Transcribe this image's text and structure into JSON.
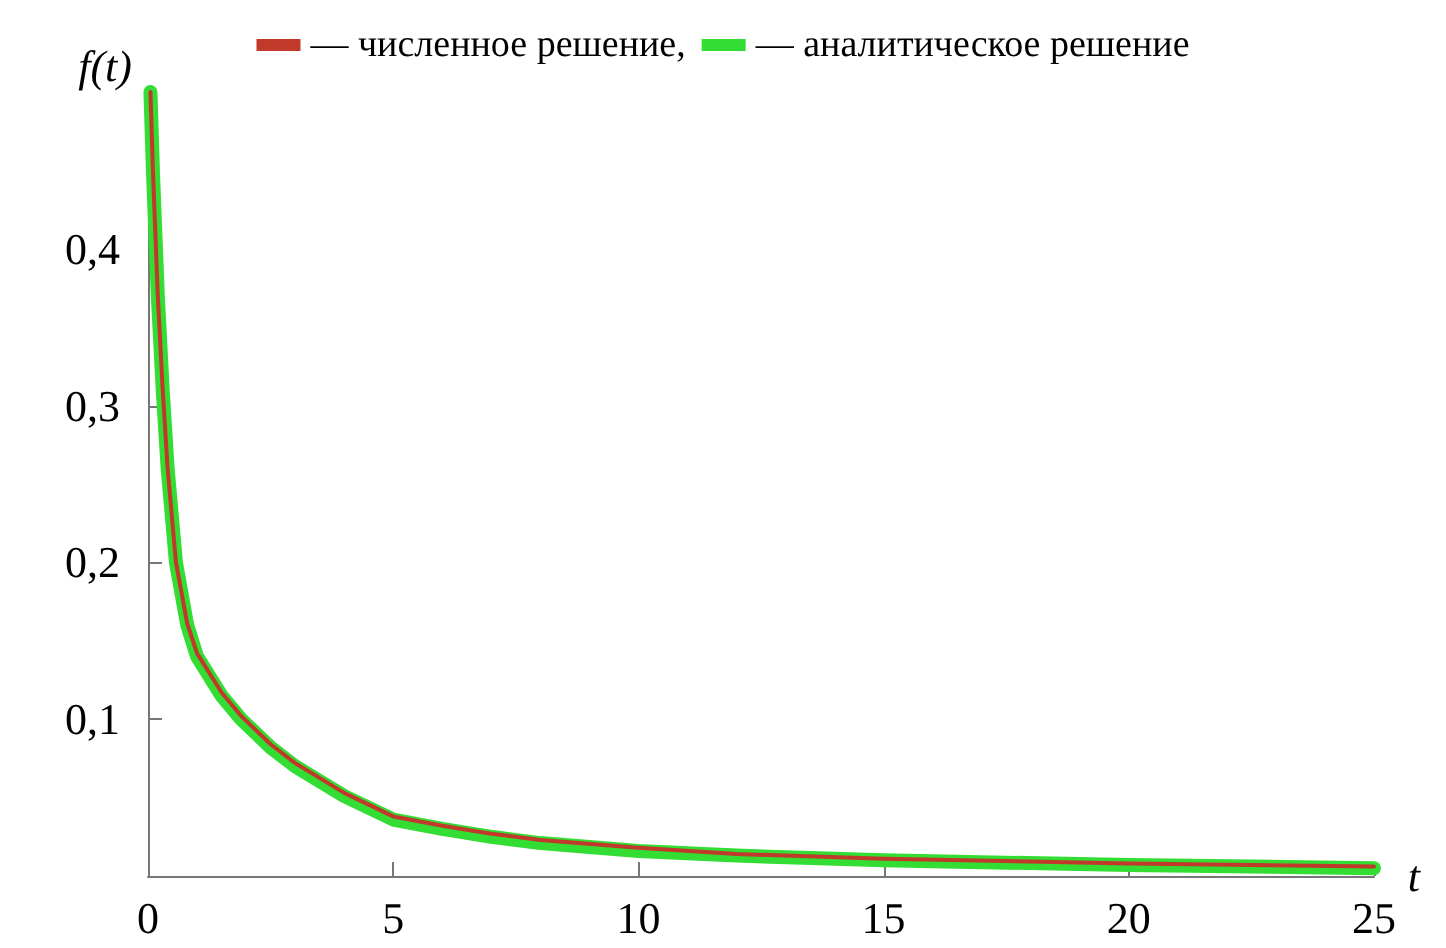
{
  "chart_data": {
    "type": "line",
    "xlabel": "t",
    "ylabel": "f(t)",
    "legend": "top",
    "x": [
      0.05,
      0.1,
      0.2,
      0.3,
      0.4,
      0.57,
      0.8,
      1,
      1.5,
      1.9,
      2.5,
      3,
      4,
      5,
      6,
      7,
      8,
      10,
      12,
      15,
      20,
      25
    ],
    "series": [
      {
        "name": "— аналитическое решение",
        "color": "#33dd33",
        "values": [
          0.5,
          0.45,
          0.37,
          0.31,
          0.26,
          0.2,
          0.16,
          0.14,
          0.115,
          0.1,
          0.082,
          0.07,
          0.051,
          0.036,
          0.03,
          0.025,
          0.021,
          0.016,
          0.013,
          0.01,
          0.007,
          0.005
        ]
      },
      {
        "name": "— численное решение,",
        "color": "#c0392b",
        "values": [
          0.5,
          0.45,
          0.37,
          0.31,
          0.26,
          0.2,
          0.161,
          0.142,
          0.117,
          0.102,
          0.084,
          0.072,
          0.053,
          0.038,
          0.032,
          0.027,
          0.023,
          0.018,
          0.014,
          0.011,
          0.008,
          0.006
        ]
      }
    ],
    "xlim": [
      0,
      25
    ],
    "xticks": [
      0,
      5,
      10,
      15,
      20,
      25
    ],
    "ylim": [
      0,
      0.5
    ],
    "yticks": [
      {
        "value": 0.1,
        "label": "0,1"
      },
      {
        "value": 0.2,
        "label": "0,2"
      },
      {
        "value": 0.3,
        "label": "0,3"
      },
      {
        "value": 0.4,
        "label": "0,4"
      }
    ],
    "grid": false,
    "marker": "none",
    "line_style": "solid"
  }
}
